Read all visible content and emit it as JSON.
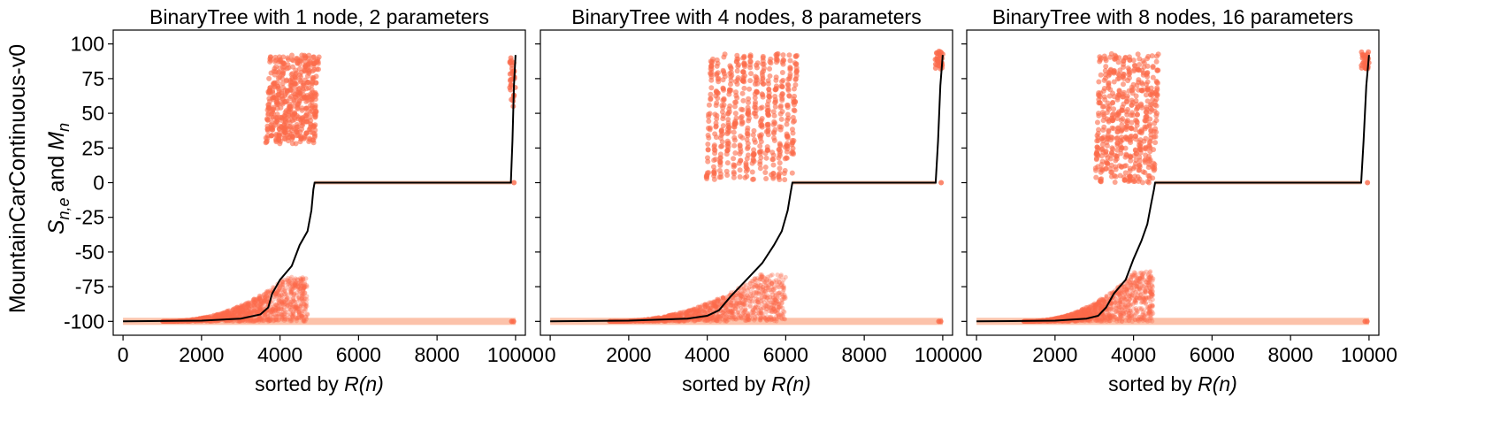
{
  "figure": {
    "row_label": "MountainCarContinuous-v0",
    "ylabel_parts": {
      "S": "S",
      "sub1": "n,e",
      "and": "and",
      "M": "M",
      "sub2": "n"
    },
    "xlabel_text": "sorted by ",
    "xlabel_italic": "R(n)"
  },
  "colors": {
    "points": "#fb6a4a",
    "band": "#fcbba1",
    "median_line": "#000000",
    "axes": "#000000"
  },
  "chart_data": [
    {
      "type": "scatter",
      "title": "BinaryTree with 1 node, 2 parameters",
      "xlim": [
        -250,
        10250
      ],
      "ylim": [
        -110,
        110
      ],
      "xticks": [
        0,
        2000,
        4000,
        6000,
        8000,
        10000
      ],
      "yticks": [
        100,
        75,
        50,
        25,
        0,
        -25,
        -50,
        -75,
        -100
      ],
      "flat_band": {
        "x_start": 0,
        "x_end": 10000,
        "y": -100
      },
      "zero_segment": {
        "x_start": 4880,
        "x_end": 9880,
        "y": 0
      },
      "cluster": {
        "x_start": 3660,
        "x_end": 4850,
        "y_min": 28,
        "y_max": 92,
        "columns": 12
      },
      "median_line": [
        [
          0,
          -100
        ],
        [
          2000,
          -99.5
        ],
        [
          3000,
          -98
        ],
        [
          3500,
          -95
        ],
        [
          3700,
          -90
        ],
        [
          3800,
          -80
        ],
        [
          4000,
          -70
        ],
        [
          4300,
          -60
        ],
        [
          4500,
          -45
        ],
        [
          4700,
          -35
        ],
        [
          4800,
          -20
        ],
        [
          4850,
          -5
        ],
        [
          4880,
          0
        ],
        [
          9880,
          0
        ],
        [
          9920,
          30
        ],
        [
          9960,
          70
        ],
        [
          10000,
          92
        ]
      ],
      "low_scatter": {
        "x_start": 1000,
        "x_end": 4700,
        "y_top": -68
      },
      "top_right_points": {
        "x_start": 9850,
        "x_end": 10000,
        "y_min": 55,
        "y_max": 92
      }
    },
    {
      "type": "scatter",
      "title": "BinaryTree with 4 nodes, 8 parameters",
      "xlim": [
        -250,
        10250
      ],
      "ylim": [
        -110,
        110
      ],
      "xticks": [
        0,
        2000,
        4000,
        6000,
        8000,
        10000
      ],
      "yticks": [
        100,
        75,
        50,
        25,
        0,
        -25,
        -50,
        -75,
        -100
      ],
      "flat_band": {
        "x_start": 0,
        "x_end": 10000,
        "y": -100
      },
      "zero_segment": {
        "x_start": 6170,
        "x_end": 9820,
        "y": 0
      },
      "cluster": {
        "x_start": 4000,
        "x_end": 6150,
        "y_min": 2,
        "y_max": 93,
        "columns": 14
      },
      "median_line": [
        [
          0,
          -100
        ],
        [
          2000,
          -99.5
        ],
        [
          3500,
          -98
        ],
        [
          4000,
          -96
        ],
        [
          4300,
          -92
        ],
        [
          4600,
          -82
        ],
        [
          5000,
          -70
        ],
        [
          5400,
          -58
        ],
        [
          5700,
          -45
        ],
        [
          5900,
          -35
        ],
        [
          6050,
          -20
        ],
        [
          6120,
          -8
        ],
        [
          6170,
          0
        ],
        [
          9820,
          0
        ],
        [
          9880,
          30
        ],
        [
          9940,
          70
        ],
        [
          10000,
          92
        ]
      ],
      "low_scatter": {
        "x_start": 1500,
        "x_end": 6000,
        "y_top": -66
      },
      "top_right_points": {
        "x_start": 9800,
        "x_end": 10000,
        "y_min": 82,
        "y_max": 95
      }
    },
    {
      "type": "scatter",
      "title": "BinaryTree with 8 nodes, 16 parameters",
      "xlim": [
        -250,
        10250
      ],
      "ylim": [
        -110,
        110
      ],
      "xticks": [
        0,
        2000,
        4000,
        6000,
        8000,
        10000
      ],
      "yticks": [
        100,
        75,
        50,
        25,
        0,
        -25,
        -50,
        -75,
        -100
      ],
      "flat_band": {
        "x_start": 0,
        "x_end": 10000,
        "y": -100
      },
      "zero_segment": {
        "x_start": 4550,
        "x_end": 9800,
        "y": 0
      },
      "cluster": {
        "x_start": 3050,
        "x_end": 4500,
        "y_min": 0,
        "y_max": 93,
        "columns": 13
      },
      "median_line": [
        [
          0,
          -100
        ],
        [
          2000,
          -99.5
        ],
        [
          2800,
          -98
        ],
        [
          3100,
          -96
        ],
        [
          3300,
          -90
        ],
        [
          3500,
          -80
        ],
        [
          3800,
          -70
        ],
        [
          4000,
          -55
        ],
        [
          4200,
          -42
        ],
        [
          4350,
          -30
        ],
        [
          4450,
          -15
        ],
        [
          4520,
          -5
        ],
        [
          4550,
          0
        ],
        [
          9800,
          0
        ],
        [
          9860,
          30
        ],
        [
          9930,
          70
        ],
        [
          10000,
          92
        ]
      ],
      "low_scatter": {
        "x_start": 1200,
        "x_end": 4500,
        "y_top": -64
      },
      "top_right_points": {
        "x_start": 9800,
        "x_end": 10000,
        "y_min": 82,
        "y_max": 95
      }
    }
  ]
}
